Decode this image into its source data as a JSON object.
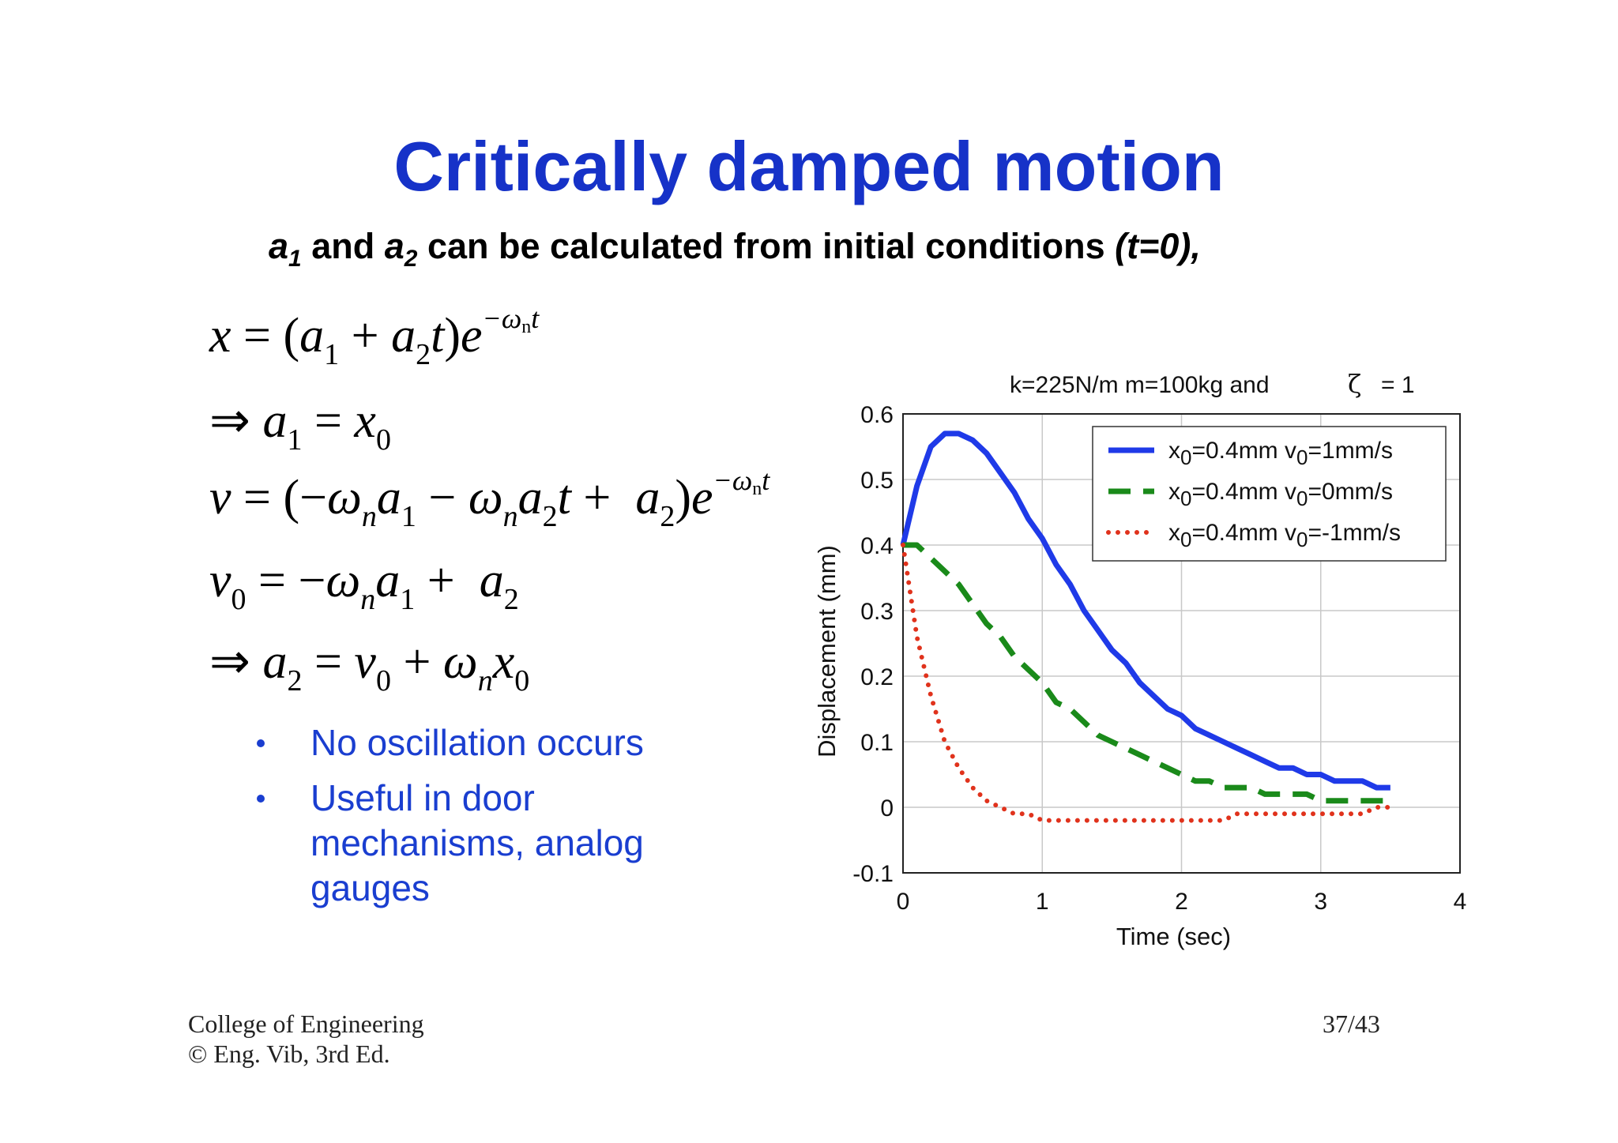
{
  "slide": {
    "title": "Critically damped motion",
    "subtitle_a1": "a",
    "subtitle_a1_sub": "1",
    "subtitle_and": " and ",
    "subtitle_a2": "a",
    "subtitle_a2_sub": "2",
    "subtitle_rest": " can be calculated from initial conditions ",
    "subtitle_t0": "(t=0),",
    "bullets": [
      "No oscillation occurs",
      "Useful in door mechanisms, analog gauges"
    ],
    "footer_left_1": "College of Engineering",
    "footer_left_2": "© Eng. Vib, 3rd Ed.",
    "page_number": "37/43"
  },
  "colors": {
    "title": "#1632c8",
    "bullets": "#1a3ed0",
    "series_1": "#1f3ae8",
    "series_2": "#1a8a1a",
    "series_3": "#e0321c"
  },
  "chart_data": {
    "type": "line",
    "title_left": "k=225N/m m=100kg and",
    "title_symbol": "ζ",
    "title_right": "= 1",
    "xlabel": "Time (sec)",
    "ylabel": "Displacement (mm)",
    "xlim": [
      0,
      4
    ],
    "ylim": [
      -0.1,
      0.6
    ],
    "xticks": [
      "0",
      "1",
      "2",
      "3",
      "4"
    ],
    "yticks": [
      "-0.1",
      "0",
      "0.1",
      "0.2",
      "0.3",
      "0.4",
      "0.5",
      "0.6"
    ],
    "grid": true,
    "legend_position": "top-right",
    "x": [
      0,
      0.1,
      0.2,
      0.3,
      0.4,
      0.5,
      0.6,
      0.7,
      0.8,
      0.9,
      1.0,
      1.1,
      1.2,
      1.3,
      1.4,
      1.5,
      1.6,
      1.7,
      1.8,
      1.9,
      2.0,
      2.1,
      2.2,
      2.3,
      2.4,
      2.5,
      2.6,
      2.7,
      2.8,
      2.9,
      3.0,
      3.1,
      3.2,
      3.3,
      3.4,
      3.5
    ],
    "series": [
      {
        "name": "x0=0.4mm v0=1mm/s",
        "style": "solid",
        "values": [
          0.4,
          0.49,
          0.55,
          0.57,
          0.57,
          0.56,
          0.54,
          0.51,
          0.48,
          0.44,
          0.41,
          0.37,
          0.34,
          0.3,
          0.27,
          0.24,
          0.22,
          0.19,
          0.17,
          0.15,
          0.14,
          0.12,
          0.11,
          0.1,
          0.09,
          0.08,
          0.07,
          0.06,
          0.06,
          0.05,
          0.05,
          0.04,
          0.04,
          0.04,
          0.03,
          0.03
        ]
      },
      {
        "name": "x0=0.4mm v0=0mm/s",
        "style": "dashed",
        "values": [
          0.4,
          0.4,
          0.38,
          0.36,
          0.34,
          0.31,
          0.28,
          0.26,
          0.23,
          0.21,
          0.19,
          0.16,
          0.15,
          0.13,
          0.11,
          0.1,
          0.09,
          0.08,
          0.07,
          0.06,
          0.05,
          0.04,
          0.04,
          0.03,
          0.03,
          0.03,
          0.02,
          0.02,
          0.02,
          0.02,
          0.01,
          0.01,
          0.01,
          0.01,
          0.01,
          0.01
        ]
      },
      {
        "name": "x0=0.4mm v0=-1mm/s",
        "style": "dotted",
        "values": [
          0.4,
          0.26,
          0.17,
          0.1,
          0.06,
          0.03,
          0.01,
          0.0,
          -0.01,
          -0.01,
          -0.02,
          -0.02,
          -0.02,
          -0.02,
          -0.02,
          -0.02,
          -0.02,
          -0.02,
          -0.02,
          -0.02,
          -0.02,
          -0.02,
          -0.02,
          -0.02,
          -0.01,
          -0.01,
          -0.01,
          -0.01,
          -0.01,
          -0.01,
          -0.01,
          -0.01,
          -0.01,
          -0.01,
          -0.0,
          -0.0
        ]
      }
    ],
    "legend": [
      {
        "base": "x",
        "sub": "0",
        "mid": "=0.4mm v",
        "sub2": "0",
        "end": "=1mm/s"
      },
      {
        "base": "x",
        "sub": "0",
        "mid": "=0.4mm v",
        "sub2": "0",
        "end": "=0mm/s"
      },
      {
        "base": "x",
        "sub": "0",
        "mid": "=0.4mm v",
        "sub2": "0",
        "end": "=-1mm/s"
      }
    ]
  }
}
